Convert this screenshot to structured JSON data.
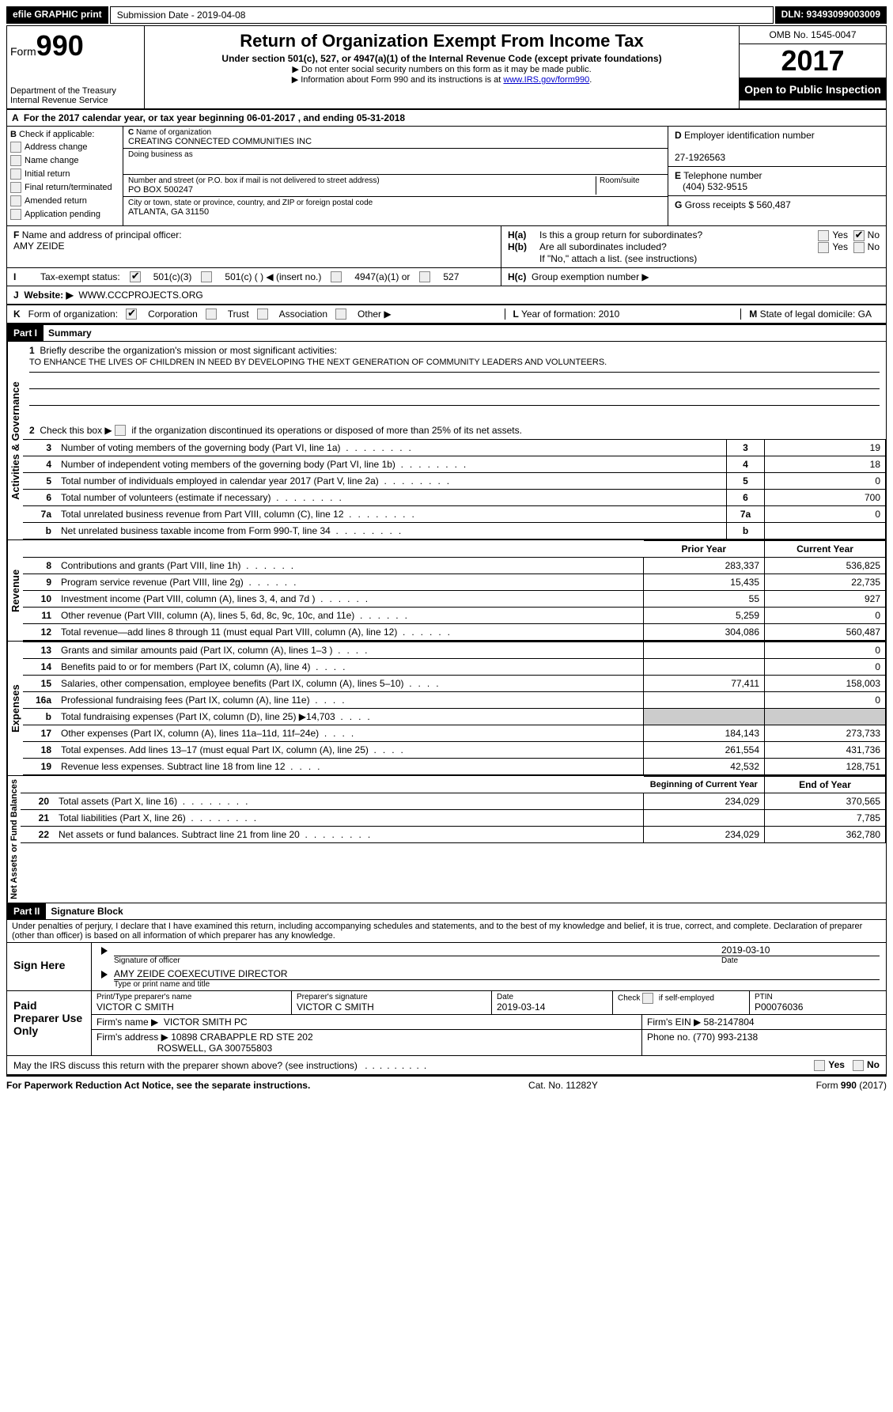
{
  "topbar": {
    "efile": "efile GRAPHIC print ",
    "submission": "Submission Date - 2019-04-08 ",
    "dln": "DLN: 93493099003009"
  },
  "header": {
    "form_label": "Form",
    "form_num": "990",
    "dept": "Department of the Treasury\nInternal Revenue Service",
    "title": "Return of Organization Exempt From Income Tax",
    "subtitle": "Under section 501(c), 527, or 4947(a)(1) of the Internal Revenue Code (except private foundations)",
    "line1": "▶ Do not enter social security numbers on this form as it may be made public.",
    "line2_pre": "▶ Information about Form 990 and its instructions is at ",
    "line2_link": "www.IRS.gov/form990",
    "omb": "OMB No. 1545-0047",
    "year": "2017",
    "inspect": "Open to Public Inspection"
  },
  "sectionA": {
    "line": "For the 2017 calendar year, or tax year beginning 06-01-2017   , and ending 05-31-2018"
  },
  "sectionB": {
    "label": "Check if applicable:",
    "items": [
      "Address change",
      "Name change",
      "Initial return",
      "Final return/terminated",
      "Amended return",
      "Application pending"
    ]
  },
  "sectionC": {
    "name_label": "Name of organization",
    "name": "CREATING CONNECTED COMMUNITIES INC",
    "dba_label": "Doing business as",
    "dba": "",
    "street_label": "Number and street (or P.O. box if mail is not delivered to street address)",
    "room_label": "Room/suite",
    "street": "PO BOX 500247",
    "city_label": "City or town, state or province, country, and ZIP or foreign postal code",
    "city": "ATLANTA, GA  31150"
  },
  "sectionD": {
    "d_label": "Employer identification number",
    "ein": "27-1926563",
    "e_label": "Telephone number",
    "phone": "(404) 532-9515",
    "g_label": "Gross receipts $",
    "g_val": "560,487"
  },
  "sectionF": {
    "label": "Name and address of principal officer:",
    "name": "AMY ZEIDE"
  },
  "sectionH": {
    "ha": "Is this a group return for subordinates?",
    "hb": "Are all subordinates included?",
    "hb_note": "If \"No,\" attach a list. (see instructions)",
    "hc": "Group exemption number ▶",
    "yes": "Yes",
    "no": "No"
  },
  "sectionI": {
    "label": "Tax-exempt status:",
    "opts": [
      "501(c)(3)",
      "501(c) (  ) ◀ (insert no.)",
      "4947(a)(1) or",
      "527"
    ]
  },
  "sectionJ": {
    "label": "Website: ▶",
    "val": "WWW.CCCPROJECTS.ORG"
  },
  "sectionK": {
    "label": "Form of organization:",
    "opts": [
      "Corporation",
      "Trust",
      "Association",
      "Other ▶"
    ],
    "l_label": "Year of formation:",
    "l_val": "2010",
    "m_label": "State of legal domicile:",
    "m_val": "GA"
  },
  "part1": {
    "header": "Part I",
    "title": "Summary",
    "q1": "Briefly describe the organization's mission or most significant activities:",
    "q1_ans": "TO ENHANCE THE LIVES OF CHILDREN IN NEED BY DEVELOPING THE NEXT GENERATION OF COMMUNITY LEADERS AND VOLUNTEERS.",
    "q2": "Check this box ▶",
    "q2_rest": "if the organization discontinued its operations or disposed of more than 25% of its net assets.",
    "gov_label": "Activities & Governance",
    "rev_label": "Revenue",
    "exp_label": "Expenses",
    "net_label": "Net Assets or Fund Balances",
    "prior_year": "Prior Year",
    "current_year": "Current Year",
    "begin_year": "Beginning of Current Year",
    "end_year": "End of Year",
    "rows_gov": [
      {
        "n": "3",
        "t": "Number of voting members of the governing body (Part VI, line 1a)",
        "v": "19"
      },
      {
        "n": "4",
        "t": "Number of independent voting members of the governing body (Part VI, line 1b)",
        "v": "18"
      },
      {
        "n": "5",
        "t": "Total number of individuals employed in calendar year 2017 (Part V, line 2a)",
        "v": "0"
      },
      {
        "n": "6",
        "t": "Total number of volunteers (estimate if necessary)",
        "v": "700"
      },
      {
        "n": "7a",
        "t": "Total unrelated business revenue from Part VIII, column (C), line 12",
        "v": "0"
      },
      {
        "n": "b",
        "t": "Net unrelated business taxable income from Form 990-T, line 34",
        "v": ""
      }
    ],
    "rows_rev": [
      {
        "n": "8",
        "t": "Contributions and grants (Part VIII, line 1h)",
        "p": "283,337",
        "c": "536,825"
      },
      {
        "n": "9",
        "t": "Program service revenue (Part VIII, line 2g)",
        "p": "15,435",
        "c": "22,735"
      },
      {
        "n": "10",
        "t": "Investment income (Part VIII, column (A), lines 3, 4, and 7d )",
        "p": "55",
        "c": "927"
      },
      {
        "n": "11",
        "t": "Other revenue (Part VIII, column (A), lines 5, 6d, 8c, 9c, 10c, and 11e)",
        "p": "5,259",
        "c": "0"
      },
      {
        "n": "12",
        "t": "Total revenue—add lines 8 through 11 (must equal Part VIII, column (A), line 12)",
        "p": "304,086",
        "c": "560,487"
      }
    ],
    "rows_exp": [
      {
        "n": "13",
        "t": "Grants and similar amounts paid (Part IX, column (A), lines 1–3 )",
        "p": "",
        "c": "0"
      },
      {
        "n": "14",
        "t": "Benefits paid to or for members (Part IX, column (A), line 4)",
        "p": "",
        "c": "0"
      },
      {
        "n": "15",
        "t": "Salaries, other compensation, employee benefits (Part IX, column (A), lines 5–10)",
        "p": "77,411",
        "c": "158,003"
      },
      {
        "n": "16a",
        "t": "Professional fundraising fees (Part IX, column (A), line 11e)",
        "p": "",
        "c": "0"
      },
      {
        "n": "b",
        "t": "Total fundraising expenses (Part IX, column (D), line 25) ▶14,703",
        "p": "GRAY",
        "c": "GRAY"
      },
      {
        "n": "17",
        "t": "Other expenses (Part IX, column (A), lines 11a–11d, 11f–24e)",
        "p": "184,143",
        "c": "273,733"
      },
      {
        "n": "18",
        "t": "Total expenses. Add lines 13–17 (must equal Part IX, column (A), line 25)",
        "p": "261,554",
        "c": "431,736"
      },
      {
        "n": "19",
        "t": "Revenue less expenses. Subtract line 18 from line 12",
        "p": "42,532",
        "c": "128,751"
      }
    ],
    "rows_net": [
      {
        "n": "20",
        "t": "Total assets (Part X, line 16)",
        "p": "234,029",
        "c": "370,565"
      },
      {
        "n": "21",
        "t": "Total liabilities (Part X, line 26)",
        "p": "",
        "c": "7,785"
      },
      {
        "n": "22",
        "t": "Net assets or fund balances. Subtract line 21 from line 20",
        "p": "234,029",
        "c": "362,780"
      }
    ]
  },
  "part2": {
    "header": "Part II",
    "title": "Signature Block",
    "perjury": "Under penalties of perjury, I declare that I have examined this return, including accompanying schedules and statements, and to the best of my knowledge and belief, it is true, correct, and complete. Declaration of preparer (other than officer) is based on all information of which preparer has any knowledge.",
    "sign_here": "Sign Here",
    "sig_officer": "Signature of officer",
    "sig_date": "2019-03-10",
    "date_label": "Date",
    "officer_name": "AMY ZEIDE COEXECUTIVE DIRECTOR",
    "type_name": "Type or print name and title",
    "paid": "Paid Preparer Use Only",
    "prep_name_label": "Print/Type preparer's name",
    "prep_name": "VICTOR C SMITH",
    "prep_sig_label": "Preparer's signature",
    "prep_sig": "VICTOR C SMITH",
    "prep_date_label": "Date",
    "prep_date": "2019-03-14",
    "check_label": "Check",
    "self_emp": "if self-employed",
    "ptin_label": "PTIN",
    "ptin": "P00076036",
    "firm_name_label": "Firm's name   ▶",
    "firm_name": "VICTOR SMITH PC",
    "firm_ein_label": "Firm's EIN ▶",
    "firm_ein": "58-2147804",
    "firm_addr_label": "Firm's address ▶",
    "firm_addr1": "10898 CRABAPPLE RD STE 202",
    "firm_addr2": "ROSWELL, GA  300755803",
    "phone_label": "Phone no.",
    "firm_phone": "(770) 993-2138",
    "discuss": "May the IRS discuss this return with the preparer shown above? (see instructions)"
  },
  "footer": {
    "paperwork": "For Paperwork Reduction Act Notice, see the separate instructions.",
    "cat": "Cat. No. 11282Y",
    "form": "Form 990 (2017)"
  }
}
